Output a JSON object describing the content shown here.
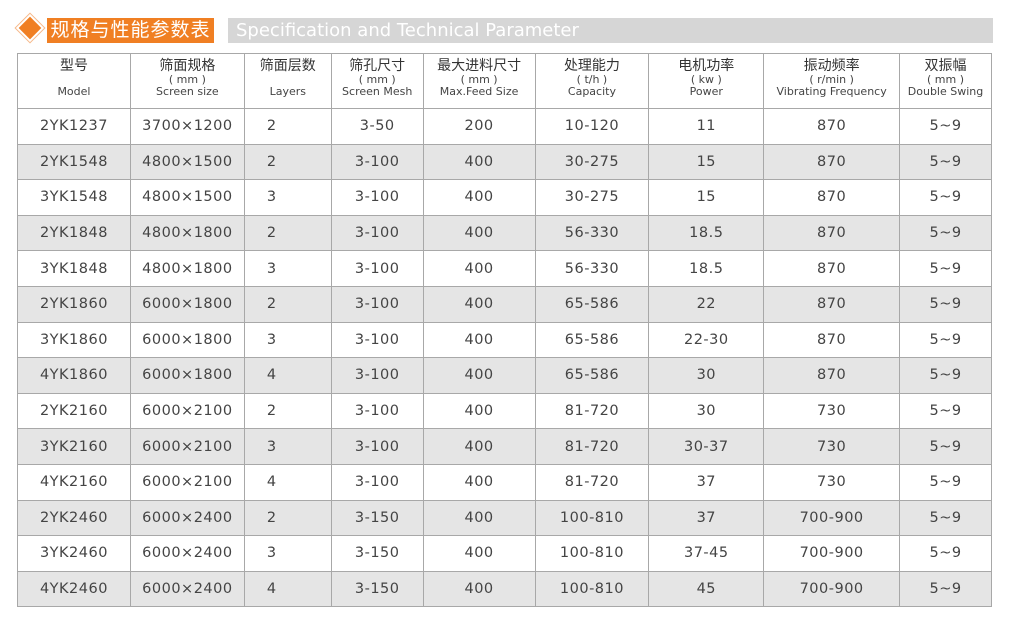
{
  "title": {
    "cn": "规格与性能参数表",
    "en": "Specification and Technical Parameter",
    "accent": "#f07f23"
  },
  "columns": [
    {
      "cn": "型号",
      "unit": "",
      "en": "Model"
    },
    {
      "cn": "筛面规格",
      "unit": "( mm )",
      "en": "Screen size"
    },
    {
      "cn": "筛面层数",
      "unit": "",
      "en": "Layers"
    },
    {
      "cn": "筛孔尺寸",
      "unit": "( mm )",
      "en": "Screen Mesh"
    },
    {
      "cn": "最大进料尺寸",
      "unit": "( mm )",
      "en": "Max.Feed Size"
    },
    {
      "cn": "处理能力",
      "unit": "( t/h )",
      "en": "Capacity"
    },
    {
      "cn": "电机功率",
      "unit": "( kw )",
      "en": "Power"
    },
    {
      "cn": "振动频率",
      "unit": "( r/min )",
      "en": "Vibrating Frequency"
    },
    {
      "cn": "双振幅",
      "unit": "( mm )",
      "en": "Double Swing"
    }
  ],
  "rows": [
    [
      "2YK1237",
      "3700×1200",
      "2",
      "3-50",
      "200",
      "10-120",
      "11",
      "870",
      "5~9"
    ],
    [
      "2YK1548",
      "4800×1500",
      "2",
      "3-100",
      "400",
      "30-275",
      "15",
      "870",
      "5~9"
    ],
    [
      "3YK1548",
      "4800×1500",
      "3",
      "3-100",
      "400",
      "30-275",
      "15",
      "870",
      "5~9"
    ],
    [
      "2YK1848",
      "4800×1800",
      "2",
      "3-100",
      "400",
      "56-330",
      "18.5",
      "870",
      "5~9"
    ],
    [
      "3YK1848",
      "4800×1800",
      "3",
      "3-100",
      "400",
      "56-330",
      "18.5",
      "870",
      "5~9"
    ],
    [
      "2YK1860",
      "6000×1800",
      "2",
      "3-100",
      "400",
      "65-586",
      "22",
      "870",
      "5~9"
    ],
    [
      "3YK1860",
      "6000×1800",
      "3",
      "3-100",
      "400",
      "65-586",
      "22-30",
      "870",
      "5~9"
    ],
    [
      "4YK1860",
      "6000×1800",
      "4",
      "3-100",
      "400",
      "65-586",
      "30",
      "870",
      "5~9"
    ],
    [
      "2YK2160",
      "6000×2100",
      "2",
      "3-100",
      "400",
      "81-720",
      "30",
      "730",
      "5~9"
    ],
    [
      "3YK2160",
      "6000×2100",
      "3",
      "3-100",
      "400",
      "81-720",
      "30-37",
      "730",
      "5~9"
    ],
    [
      "4YK2160",
      "6000×2100",
      "4",
      "3-100",
      "400",
      "81-720",
      "37",
      "730",
      "5~9"
    ],
    [
      "2YK2460",
      "6000×2400",
      "2",
      "3-150",
      "400",
      "100-810",
      "37",
      "700-900",
      "5~9"
    ],
    [
      "3YK2460",
      "6000×2400",
      "3",
      "3-150",
      "400",
      "100-810",
      "37-45",
      "700-900",
      "5~9"
    ],
    [
      "4YK2460",
      "6000×2400",
      "4",
      "3-150",
      "400",
      "100-810",
      "45",
      "700-900",
      "5~9"
    ]
  ]
}
